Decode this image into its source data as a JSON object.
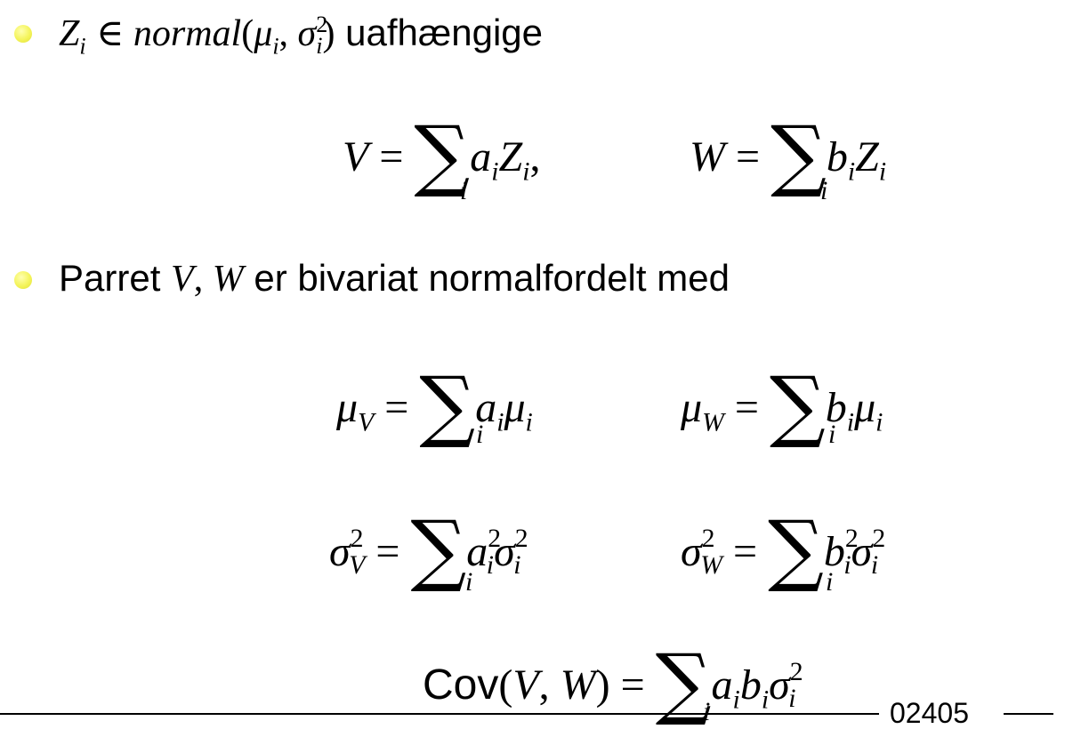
{
  "bullets": {
    "b1_text": "uafhængige",
    "b2_pre": "Parret",
    "b2_post": "er bivariat normalfordelt med"
  },
  "math": {
    "normal_word": "normal",
    "cov_word": "Cov"
  },
  "footer": {
    "course_code": "02405"
  },
  "colors": {
    "bullet": "#f4f45a",
    "text": "#000000",
    "background": "#ffffff"
  }
}
